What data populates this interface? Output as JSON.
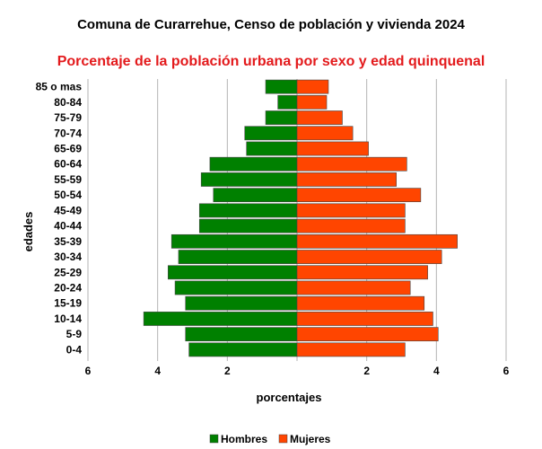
{
  "chart_data": {
    "type": "bar",
    "orientation": "horizontal",
    "title": "Comuna de Curarrehue, Censo de población y vivienda 2024",
    "subtitle": "Porcentaje de la población urbana por sexo y edad quinquenal",
    "xlabel": "porcentajes",
    "ylabel": "edades",
    "xlim": [
      -6,
      6
    ],
    "xticks": [
      -6,
      -4,
      -2,
      0,
      2,
      4,
      6
    ],
    "xtick_labels": [
      "6",
      "4",
      "2",
      "",
      "2",
      "4",
      "6"
    ],
    "grid": true,
    "legend_position": "bottom",
    "categories": [
      "0-4",
      "5-9",
      "10-14",
      "15-19",
      "20-24",
      "25-29",
      "30-34",
      "35-39",
      "40-44",
      "45-49",
      "50-54",
      "55-59",
      "60-64",
      "65-69",
      "70-74",
      "75-79",
      "80-84",
      "85 o mas"
    ],
    "series": [
      {
        "name": "Hombres",
        "color": "#008000",
        "values": [
          3.1,
          3.2,
          4.4,
          3.2,
          3.5,
          3.7,
          3.4,
          3.6,
          2.8,
          2.8,
          2.4,
          2.75,
          2.5,
          1.45,
          1.5,
          0.9,
          0.55,
          0.9
        ]
      },
      {
        "name": "Mujeres",
        "color": "#ff4500",
        "values": [
          3.1,
          4.05,
          3.9,
          3.65,
          3.25,
          3.75,
          4.15,
          4.6,
          3.1,
          3.1,
          3.55,
          2.85,
          3.15,
          2.05,
          1.6,
          1.3,
          0.85,
          0.9
        ]
      }
    ]
  }
}
